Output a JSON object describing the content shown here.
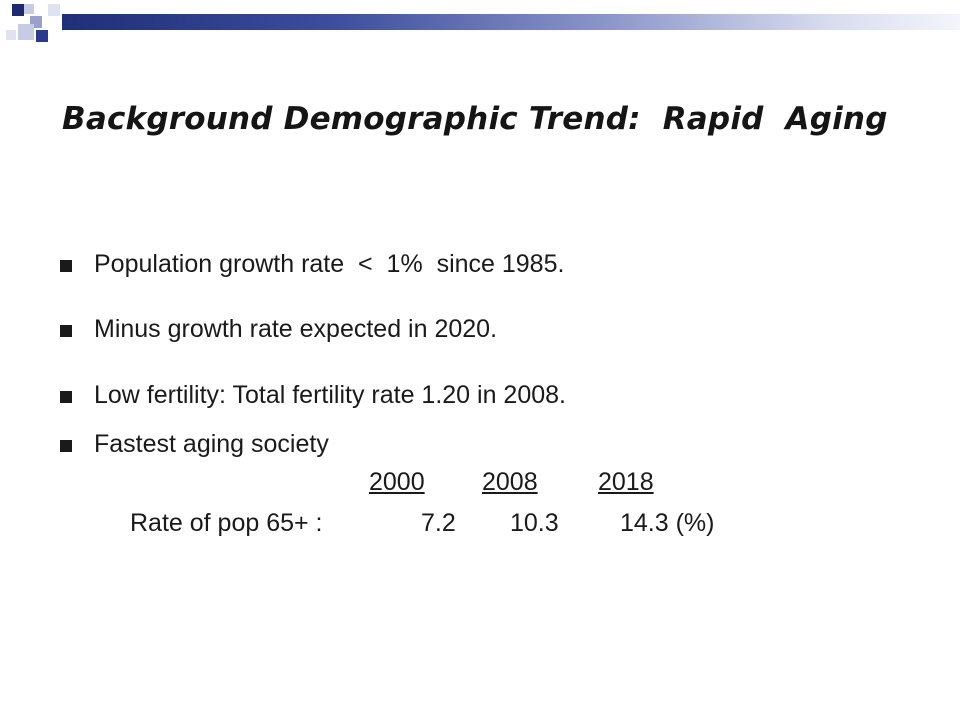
{
  "slide": {
    "title": "Background Demographic Trend:  Rapid  Aging",
    "bullets": [
      {
        "text": "Population growth rate  <  1%  since 1985."
      },
      {
        "text": "Minus growth rate expected in 2020."
      },
      {
        "text": "Low fertility: Total fertility rate 1.20 in 2008."
      },
      {
        "text": "Fastest aging society"
      }
    ],
    "aging_table": {
      "years": [
        "2000",
        "2008",
        "2018"
      ],
      "row_label": "Rate of pop 65+ :",
      "values": [
        "7.2",
        "10.3",
        "14.3 (%)"
      ]
    }
  }
}
